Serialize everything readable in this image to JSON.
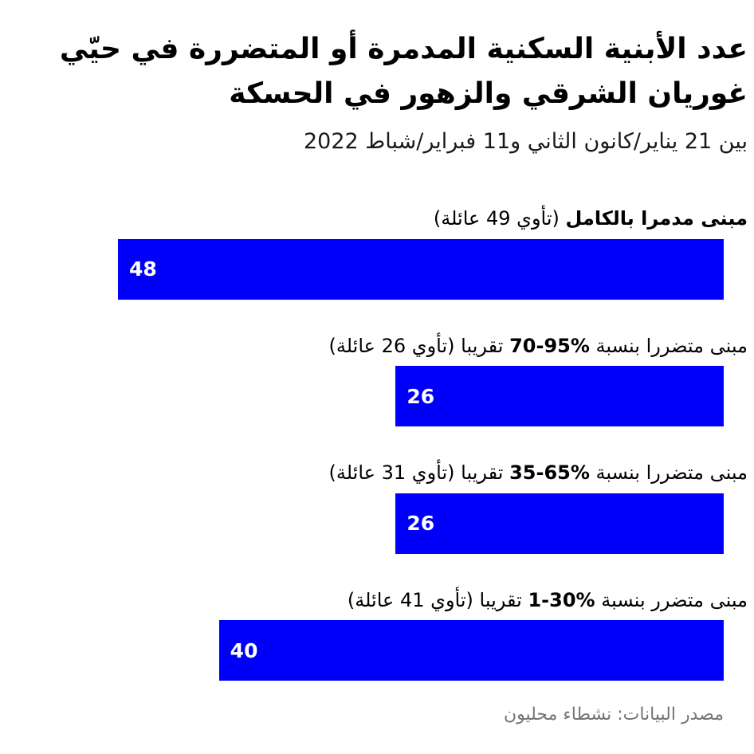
{
  "header": {
    "title_line1": "عدد الأبنية السكنية المدمرة أو المتضررة في حيّي",
    "title_line2": "غوريان الشرقي والزهور في الحسكة",
    "subtitle": "بين 21 يناير/كانون الثاني و11 فبراير/شباط 2022"
  },
  "footer": {
    "source": "مصدر البيانات: نشطاء محليون"
  },
  "chart_data": {
    "type": "bar",
    "orientation": "horizontal",
    "rtl": true,
    "title": "عدد الأبنية السكنية المدمرة أو المتضررة في حيّي غوريان الشرقي والزهور في الحسكة",
    "subtitle": "بين 21 يناير/كانون الثاني و11 فبراير/شباط 2022",
    "xlim": [
      0,
      48
    ],
    "grid": false,
    "legend": false,
    "bar_color": "#0000fa",
    "value_label_color": "#ffffff",
    "categories": [
      "مبنى مدمرا بالكامل (تأوي 49 عائلة)",
      "مبنى متضررا بنسبة 70-95% تقريبا (تأوي 26 عائلة)",
      "مبنى متضررا بنسبة 35-65% تقريبا (تأوي 31 عائلة)",
      "مبنى متضرر بنسبة 1-30% تقريبا (تأوي 41 عائلة)"
    ],
    "values": [
      48,
      26,
      26,
      40
    ],
    "families_housed": [
      49,
      26,
      31,
      41
    ],
    "source": "مصدر البيانات: نشطاء محليون",
    "rows": [
      {
        "value": 48,
        "label_parts": [
          {
            "text": "مبنى مدمرا بالكامل",
            "bold": true
          },
          {
            "text": " (تأوي 49 عائلة)",
            "bold": false
          }
        ]
      },
      {
        "value": 26,
        "label_parts": [
          {
            "text": "مبنى متضررا بنسبة ",
            "bold": false
          },
          {
            "text": "%95-70",
            "bold": true
          },
          {
            "text": " تقريبا (تأوي 26 عائلة)",
            "bold": false
          }
        ]
      },
      {
        "value": 26,
        "label_parts": [
          {
            "text": "مبنى متضررا بنسبة ",
            "bold": false
          },
          {
            "text": "%65-35",
            "bold": true
          },
          {
            "text": " تقريبا (تأوي 31 عائلة)",
            "bold": false
          }
        ]
      },
      {
        "value": 40,
        "label_parts": [
          {
            "text": "مبنى متضرر بنسبة ",
            "bold": false
          },
          {
            "text": "%30-1",
            "bold": true
          },
          {
            "text": " تقريبا (تأوي 41 عائلة)",
            "bold": false
          }
        ]
      }
    ]
  }
}
